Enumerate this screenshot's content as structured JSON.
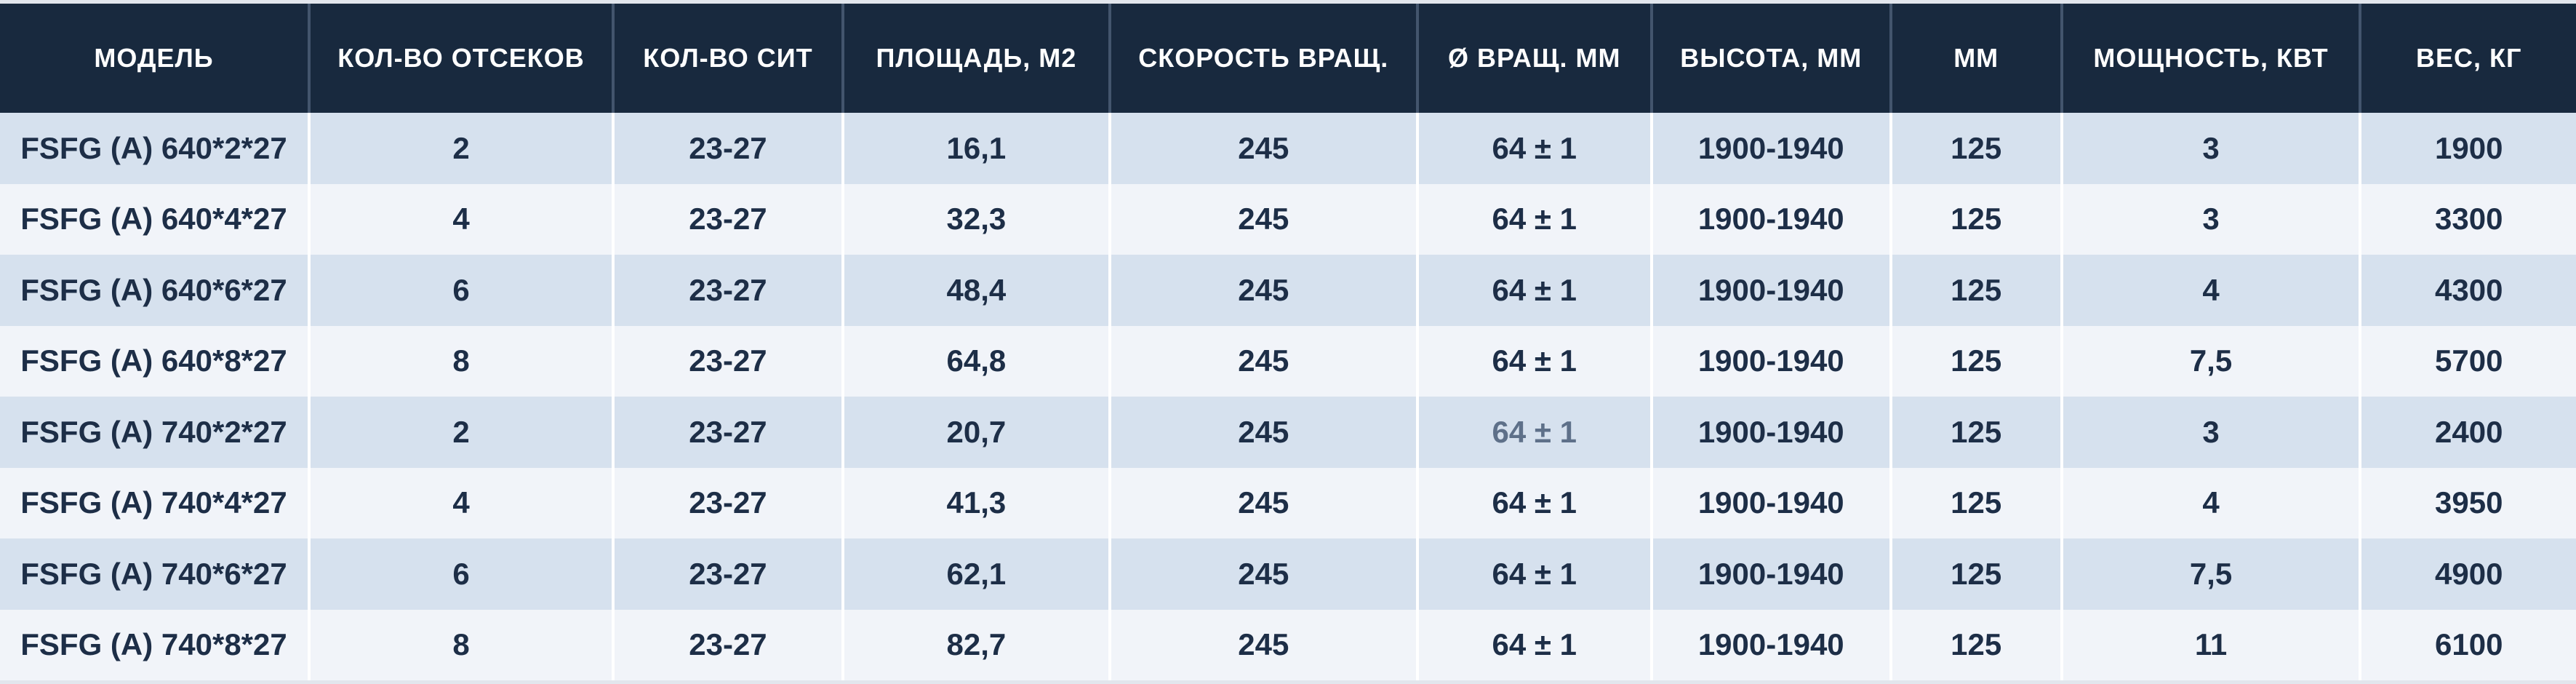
{
  "chart_data": {
    "type": "table",
    "columns": [
      "МОДЕЛЬ",
      "КОЛ-ВО ОТСЕКОВ",
      "КОЛ-ВО СИТ",
      "ПЛОЩАДЬ, М2",
      "СКОРОСТЬ ВРАЩ.",
      "Ø ВРАЩ. ММ",
      "ВЫСОТА, ММ",
      "ММ",
      "МОЩНОСТЬ, КВТ",
      "ВЕС, КГ"
    ],
    "rows": [
      [
        "FSFG (A) 640*2*27",
        "2",
        "23-27",
        "16,1",
        "245",
        "64 ± 1",
        "1900-1940",
        "125",
        "3",
        "1900"
      ],
      [
        "FSFG (A) 640*4*27",
        "4",
        "23-27",
        "32,3",
        "245",
        "64 ± 1",
        "1900-1940",
        "125",
        "3",
        "3300"
      ],
      [
        "FSFG (A) 640*6*27",
        "6",
        "23-27",
        "48,4",
        "245",
        "64 ± 1",
        "1900-1940",
        "125",
        "4",
        "4300"
      ],
      [
        "FSFG (A) 640*8*27",
        "8",
        "23-27",
        "64,8",
        "245",
        "64 ± 1",
        "1900-1940",
        "125",
        "7,5",
        "5700"
      ],
      [
        "FSFG (A) 740*2*27",
        "2",
        "23-27",
        "20,7",
        "245",
        "64 ± 1",
        "1900-1940",
        "125",
        "3",
        "2400"
      ],
      [
        "FSFG (A) 740*4*27",
        "4",
        "23-27",
        "41,3",
        "245",
        "64 ± 1",
        "1900-1940",
        "125",
        "4",
        "3950"
      ],
      [
        "FSFG (A) 740*6*27",
        "6",
        "23-27",
        "62,1",
        "245",
        "64 ± 1",
        "1900-1940",
        "125",
        "7,5",
        "4900"
      ],
      [
        "FSFG (A) 740*8*27",
        "8",
        "23-27",
        "82,7",
        "245",
        "64 ± 1",
        "1900-1940",
        "125",
        "11",
        "6100"
      ]
    ],
    "layout_hints": {
      "striped_rows": true,
      "header_position": "top",
      "all_cells_centered": true
    }
  },
  "muted_cell": {
    "row_index": 4,
    "col_index": 5
  },
  "colors": {
    "page_bg": "#e2e6ed",
    "header_bg": "#18293e",
    "header_text": "#ffffff",
    "header_divider": "#43556d",
    "row_odd_bg": "#d6e1ee",
    "row_even_bg": "#f1f4f9",
    "cell_text": "#1d2e47",
    "cell_divider": "#ffffff",
    "muted_cell_text": "#5e7089"
  }
}
